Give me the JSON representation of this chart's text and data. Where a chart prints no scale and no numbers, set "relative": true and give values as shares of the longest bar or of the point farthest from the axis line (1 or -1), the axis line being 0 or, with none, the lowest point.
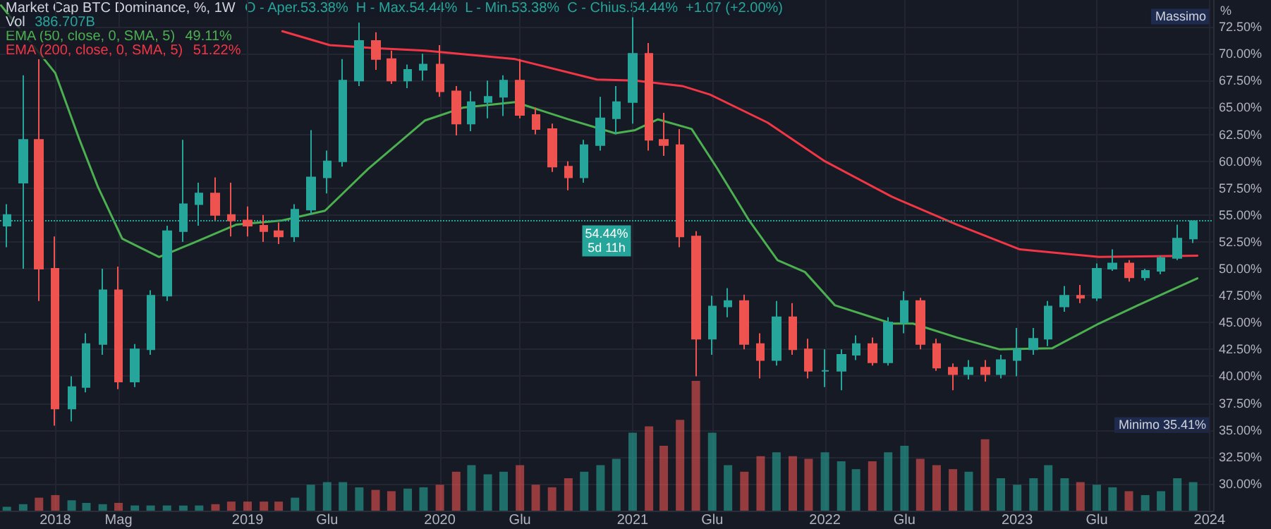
{
  "chart_data": [
    {
      "type": "candlestick",
      "title": "Market Cap BTC Dominance, %, 1W",
      "subtitle": "O - Aper.53.38%  H - Max.54.44%  L - Min.53.38%  C - Chius.54.44%  +1.07 (+2.00%)",
      "ylabel": "%",
      "x": [
        "2017-10",
        "2017-11",
        "2017-12",
        "2018-01",
        "2018-02",
        "2018-03",
        "2018-04",
        "2018-05",
        "2018-06",
        "2018-07",
        "2018-08",
        "2018-09",
        "2018-10",
        "2018-11",
        "2018-12",
        "2019-01",
        "2019-02",
        "2019-03",
        "2019-04",
        "2019-05",
        "2019-06",
        "2019-07",
        "2019-08",
        "2019-09",
        "2019-10",
        "2019-11",
        "2019-12",
        "2020-01",
        "2020-02",
        "2020-03",
        "2020-04",
        "2020-05",
        "2020-06",
        "2020-07",
        "2020-08",
        "2020-09",
        "2020-10",
        "2020-11",
        "2020-12",
        "2021-01",
        "2021-02",
        "2021-03",
        "2021-04",
        "2021-05",
        "2021-06",
        "2021-07",
        "2021-08",
        "2021-09",
        "2021-10",
        "2021-11",
        "2021-12",
        "2022-01",
        "2022-02",
        "2022-03",
        "2022-04",
        "2022-05",
        "2022-06",
        "2022-07",
        "2022-08",
        "2022-09",
        "2022-10",
        "2022-11",
        "2022-12",
        "2023-01",
        "2023-02",
        "2023-03",
        "2023-04",
        "2023-05",
        "2023-06",
        "2023-07",
        "2023-08",
        "2023-09",
        "2023-10",
        "2023-11",
        "2023-12"
      ],
      "ohlc": [
        [
          54,
          56,
          52,
          55
        ],
        [
          58,
          68,
          50,
          62
        ],
        [
          62,
          69.5,
          47,
          50
        ],
        [
          50,
          53,
          35.41,
          37
        ],
        [
          37,
          40,
          35.8,
          39
        ],
        [
          39,
          44,
          38.5,
          43
        ],
        [
          43,
          50,
          42,
          48
        ],
        [
          48,
          50.2,
          38.8,
          39.5
        ],
        [
          39.5,
          43,
          39,
          42.5
        ],
        [
          42.5,
          48,
          42,
          47.5
        ],
        [
          47.5,
          54,
          47,
          53.5
        ],
        [
          53.5,
          62,
          52.5,
          56
        ],
        [
          56,
          58,
          54,
          57
        ],
        [
          57,
          58.5,
          54.5,
          55
        ],
        [
          55,
          58,
          53,
          54.5
        ],
        [
          54.5,
          55.8,
          53,
          54
        ],
        [
          54,
          55,
          52.5,
          53.5
        ],
        [
          53.5,
          54.3,
          52.3,
          53
        ],
        [
          53,
          56,
          52.5,
          55.5
        ],
        [
          55.5,
          62.9,
          55,
          58.5
        ],
        [
          58.5,
          61,
          57,
          60
        ],
        [
          60,
          69.5,
          59.5,
          67.5
        ],
        [
          67.5,
          72.9,
          67,
          71.2
        ],
        [
          71.2,
          72,
          68.5,
          69.5
        ],
        [
          69.5,
          70.3,
          67.2,
          67.5
        ],
        [
          67.5,
          69,
          66.8,
          68.5
        ],
        [
          68.5,
          70,
          67.5,
          69
        ],
        [
          69,
          70.8,
          66,
          66.5
        ],
        [
          66.5,
          67,
          62.4,
          63.5
        ],
        [
          63.5,
          66.5,
          62.8,
          65.5
        ],
        [
          65.5,
          67.5,
          64,
          66
        ],
        [
          66,
          68,
          64.2,
          67.5
        ],
        [
          67.5,
          69.5,
          64,
          64.3
        ],
        [
          64.3,
          65,
          62.5,
          63
        ],
        [
          63,
          63.5,
          59,
          59.5
        ],
        [
          59.5,
          60,
          57.3,
          58.5
        ],
        [
          58.5,
          62,
          58,
          61.5
        ],
        [
          61.5,
          66,
          61,
          64
        ],
        [
          64,
          67,
          62.5,
          65.5
        ],
        [
          65.5,
          73.4,
          63.5,
          70
        ],
        [
          70,
          71,
          61,
          62
        ],
        [
          62,
          64.5,
          60.5,
          61.5
        ],
        [
          61.5,
          63,
          52,
          53
        ],
        [
          53,
          53.5,
          40,
          43.5
        ],
        [
          43.5,
          47.5,
          42,
          46.5
        ],
        [
          46.5,
          48.2,
          45.5,
          47
        ],
        [
          47,
          47.6,
          42.5,
          43
        ],
        [
          43,
          44,
          39.8,
          41.5
        ],
        [
          41.5,
          47,
          41,
          45.5
        ],
        [
          45.5,
          46.8,
          42,
          42.5
        ],
        [
          42.5,
          43.5,
          39.8,
          40.5
        ],
        [
          40.5,
          42.5,
          39,
          40.5
        ],
        [
          40.5,
          42.5,
          38.7,
          42
        ],
        [
          42,
          43.8,
          41.5,
          43
        ],
        [
          43,
          43.6,
          41,
          41.3
        ],
        [
          41.3,
          45.5,
          41,
          45
        ],
        [
          45,
          47.9,
          44,
          47
        ],
        [
          47,
          47.3,
          42.5,
          43
        ],
        [
          43,
          43.5,
          40.5,
          40.8
        ],
        [
          40.8,
          41.2,
          38.7,
          40.2
        ],
        [
          40.2,
          41.5,
          39.7,
          40.8
        ],
        [
          40.8,
          41.5,
          39.5,
          40.2
        ],
        [
          40.2,
          42,
          39.8,
          41.5
        ],
        [
          41.5,
          44.5,
          40,
          42.5
        ],
        [
          42.5,
          44.5,
          42,
          43.5
        ],
        [
          43.5,
          47,
          42.8,
          46.5
        ],
        [
          46.5,
          48.4,
          46,
          47.5
        ],
        [
          47.5,
          48.5,
          46.8,
          47.3
        ],
        [
          47.3,
          50.5,
          47,
          50
        ],
        [
          50,
          51.8,
          49.8,
          50.5
        ],
        [
          50.5,
          50.8,
          48.8,
          49.2
        ],
        [
          49.2,
          50,
          48.9,
          49.8
        ],
        [
          49.8,
          51.2,
          49.5,
          51
        ],
        [
          51,
          54.1,
          50.8,
          52.8
        ],
        [
          52.8,
          54.44,
          52.4,
          54.44
        ]
      ],
      "colors": [
        "#26a69a",
        "#26a69a",
        "#ef5350",
        "#ef5350",
        "#26a69a",
        "#26a69a",
        "#26a69a",
        "#ef5350",
        "#26a69a",
        "#26a69a",
        "#26a69a",
        "#26a69a",
        "#26a69a",
        "#ef5350",
        "#ef5350",
        "#ef5350",
        "#ef5350",
        "#ef5350",
        "#26a69a",
        "#26a69a",
        "#26a69a",
        "#26a69a",
        "#26a69a",
        "#ef5350",
        "#ef5350",
        "#26a69a",
        "#26a69a",
        "#ef5350",
        "#ef5350",
        "#26a69a",
        "#26a69a",
        "#26a69a",
        "#ef5350",
        "#ef5350",
        "#ef5350",
        "#ef5350",
        "#26a69a",
        "#26a69a",
        "#26a69a",
        "#26a69a",
        "#ef5350",
        "#ef5350",
        "#ef5350",
        "#ef5350",
        "#26a69a",
        "#26a69a",
        "#ef5350",
        "#ef5350",
        "#26a69a",
        "#ef5350",
        "#ef5350",
        "#26a69a",
        "#26a69a",
        "#26a69a",
        "#ef5350",
        "#26a69a",
        "#26a69a",
        "#ef5350",
        "#ef5350",
        "#ef5350",
        "#26a69a",
        "#ef5350",
        "#26a69a",
        "#26a69a",
        "#26a69a",
        "#26a69a",
        "#26a69a",
        "#ef5350",
        "#26a69a",
        "#26a69a",
        "#ef5350",
        "#26a69a",
        "#26a69a",
        "#26a69a",
        "#26a69a"
      ],
      "series": [
        {
          "type": "line",
          "name": "EMA (50, close, 0, SMA, 5)",
          "color": "#4caf50",
          "x": [
            "2017-09-20",
            "2018-01-01",
            "2018-02-16",
            "2018-03-23",
            "2018-05-08",
            "2018-07-17",
            "2018-09-20",
            "2018-12-10",
            "2019-03-08",
            "2019-05-28",
            "2019-08-18",
            "2019-12-04",
            "2020-02-15",
            "2020-05-23",
            "2020-09-01",
            "2020-11-29",
            "2021-01-06",
            "2021-02-18",
            "2021-04-23",
            "2021-06-11",
            "2021-08-10",
            "2021-10-03",
            "2021-11-24",
            "2022-01-20",
            "2022-05-08",
            "2022-06-17",
            "2022-09-09",
            "2022-11-29",
            "2023-03-08",
            "2023-06-05",
            "2023-08-18",
            "2023-12-09"
          ],
          "values": [
            74.5,
            68.2,
            62,
            57.6,
            52.8,
            51.1,
            52.4,
            54.1,
            54.5,
            55.4,
            59.3,
            63.8,
            65,
            65.5,
            63.9,
            62.6,
            62.9,
            63.9,
            63,
            59.3,
            54.5,
            50.8,
            49.7,
            46.6,
            44.9,
            44.9,
            43.6,
            42.5,
            42.6,
            44.9,
            46.6,
            49.11
          ]
        },
        {
          "type": "line",
          "name": "EMA (200, close, 0, SMA, 5)",
          "color": "#f23645",
          "x": [
            "2019-03-08",
            "2019-06-06",
            "2019-09-06",
            "2019-12-04",
            "2020-05-23",
            "2020-10-25",
            "2021-01-06",
            "2021-04-05",
            "2021-05-28",
            "2021-09-14",
            "2022-01-01",
            "2022-05-08",
            "2022-09-09",
            "2023-01-06",
            "2023-06-05",
            "2023-12-09"
          ],
          "values": [
            72.1,
            70.8,
            70.5,
            70.3,
            69.5,
            67.6,
            67.5,
            67,
            66.2,
            63.6,
            60,
            56.7,
            54.1,
            51.8,
            51.1,
            51.22
          ]
        }
      ],
      "annotations": [
        "49.11%",
        "51.22%",
        "Massimo",
        "Minimo 35.41%"
      ],
      "ref_lines": [
        {
          "axis": "y",
          "value": 54.44,
          "label": "54.44%\n5d 11h",
          "color": "#26a69a",
          "line_style": "dotted"
        }
      ],
      "xlim": [
        "2017-09-18",
        "2024-01-08"
      ],
      "xticks": [
        {
          "value": "2018-01-01",
          "label": "2018"
        },
        {
          "value": "2018-05-01",
          "label": "Mag"
        },
        {
          "value": "2019-01-01",
          "label": "2019"
        },
        {
          "value": "2019-06-01",
          "label": "Glu"
        },
        {
          "value": "2020-01-01",
          "label": "2020"
        },
        {
          "value": "2020-06-01",
          "label": "Glu"
        },
        {
          "value": "2021-01-01",
          "label": "2021"
        },
        {
          "value": "2021-06-01",
          "label": "Glu"
        },
        {
          "value": "2022-01-01",
          "label": "2022"
        },
        {
          "value": "2022-06-01",
          "label": "Glu"
        },
        {
          "value": "2023-01-01",
          "label": "2023"
        },
        {
          "value": "2023-06-01",
          "label": "Glu"
        },
        {
          "value": "2024-01-01",
          "label": "2024"
        }
      ],
      "ylim": [
        27.5,
        75
      ],
      "yticks": [
        {
          "value": 30,
          "label": "30.00%"
        },
        {
          "value": 32.5,
          "label": "32.50%"
        },
        {
          "value": 35,
          "label": "35.00%"
        },
        {
          "value": 37.5,
          "label": "37.50%"
        },
        {
          "value": 40,
          "label": "40.00%"
        },
        {
          "value": 42.5,
          "label": "42.50%"
        },
        {
          "value": 45,
          "label": "45.00%"
        },
        {
          "value": 47.5,
          "label": "47.50%"
        },
        {
          "value": 50,
          "label": "50.00%"
        },
        {
          "value": 52.5,
          "label": "52.50%"
        },
        {
          "value": 55,
          "label": "55.00%"
        },
        {
          "value": 57.5,
          "label": "57.50%"
        },
        {
          "value": 60,
          "label": "60.00%"
        },
        {
          "value": 62.5,
          "label": "62.50%"
        },
        {
          "value": 65,
          "label": "65.00%"
        },
        {
          "value": 67.5,
          "label": "67.50%"
        },
        {
          "value": 70,
          "label": "70.00%"
        },
        {
          "value": 72.5,
          "label": "72.50%"
        }
      ],
      "grid": true,
      "legend": "top left"
    },
    {
      "type": "bar",
      "relative": true,
      "xlim": [
        "2017-09-18",
        "2024-01-08"
      ],
      "x": [
        "2017-10",
        "2017-11",
        "2017-12",
        "2018-01",
        "2018-02",
        "2018-03",
        "2018-04",
        "2018-05",
        "2018-06",
        "2018-07",
        "2018-08",
        "2018-09",
        "2018-10",
        "2018-11",
        "2018-12",
        "2019-01",
        "2019-02",
        "2019-03",
        "2019-04",
        "2019-05",
        "2019-06",
        "2019-07",
        "2019-08",
        "2019-09",
        "2019-10",
        "2019-11",
        "2019-12",
        "2020-01",
        "2020-02",
        "2020-03",
        "2020-04",
        "2020-05",
        "2020-06",
        "2020-07",
        "2020-08",
        "2020-09",
        "2020-10",
        "2020-11",
        "2020-12",
        "2021-01",
        "2021-02",
        "2021-03",
        "2021-04",
        "2021-05",
        "2021-06",
        "2021-07",
        "2021-08",
        "2021-09",
        "2021-10",
        "2021-11",
        "2021-12",
        "2022-01",
        "2022-02",
        "2022-03",
        "2022-04",
        "2022-05",
        "2022-06",
        "2022-07",
        "2022-08",
        "2022-09",
        "2022-10",
        "2022-11",
        "2022-12",
        "2023-01",
        "2023-02",
        "2023-03",
        "2023-04",
        "2023-05",
        "2023-06",
        "2023-07",
        "2023-08",
        "2023-09",
        "2023-10",
        "2023-11",
        "2023-12"
      ],
      "series": [
        {
          "name": "Vol",
          "values": [
            0.03,
            0.05,
            0.1,
            0.12,
            0.08,
            0.06,
            0.05,
            0.06,
            0.04,
            0.04,
            0.04,
            0.04,
            0.04,
            0.05,
            0.07,
            0.07,
            0.07,
            0.07,
            0.1,
            0.2,
            0.22,
            0.22,
            0.18,
            0.16,
            0.15,
            0.17,
            0.18,
            0.2,
            0.3,
            0.35,
            0.28,
            0.3,
            0.35,
            0.2,
            0.18,
            0.25,
            0.3,
            0.35,
            0.4,
            0.6,
            0.65,
            0.5,
            0.7,
            1,
            0.6,
            0.35,
            0.3,
            0.42,
            0.45,
            0.42,
            0.4,
            0.45,
            0.38,
            0.32,
            0.38,
            0.45,
            0.5,
            0.4,
            0.35,
            0.32,
            0.3,
            0.55,
            0.25,
            0.2,
            0.25,
            0.35,
            0.25,
            0.22,
            0.2,
            0.18,
            0.15,
            0.12,
            0.15,
            0.25,
            0.22
          ]
        }
      ],
      "annotations": [
        "386.707B"
      ]
    }
  ]
}
